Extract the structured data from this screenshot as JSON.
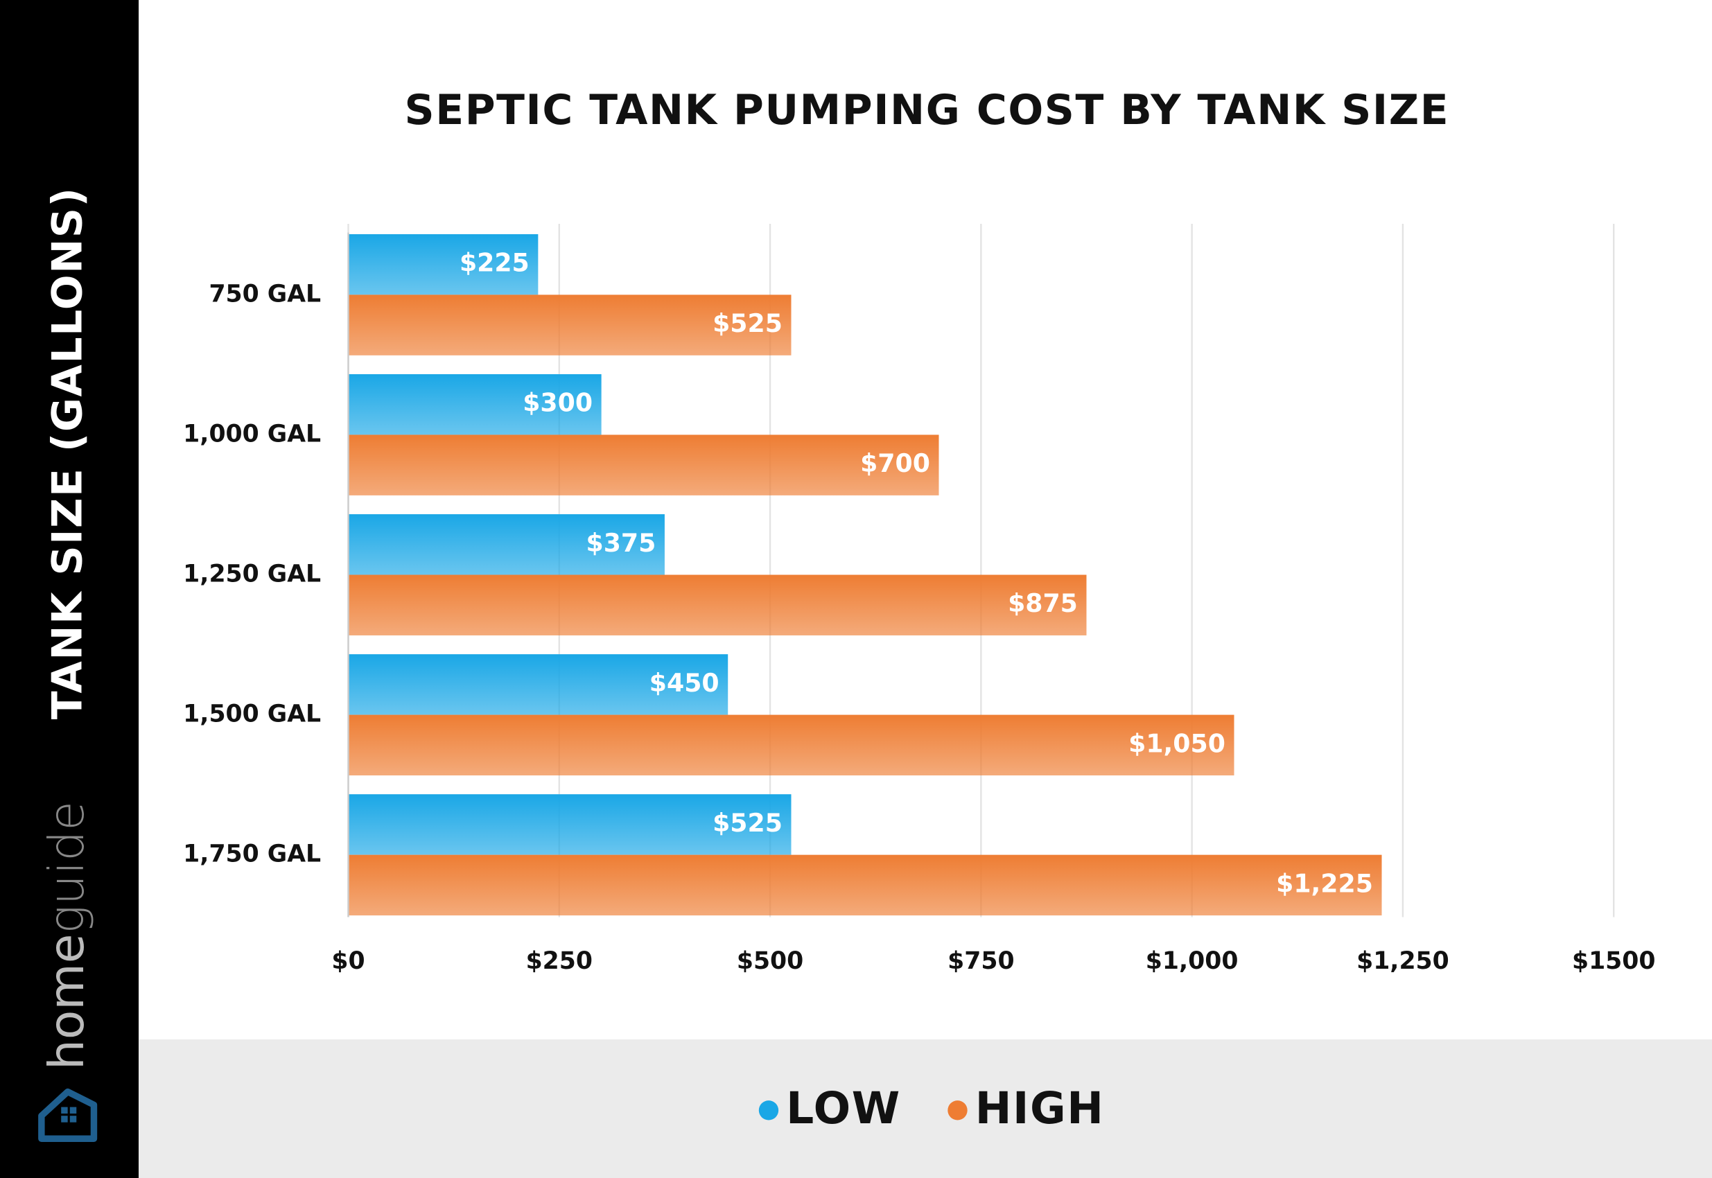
{
  "chart_data": {
    "type": "bar",
    "orientation": "horizontal",
    "title": "SEPTIC TANK PUMPING COST BY TANK SIZE",
    "y_label": "TANK SIZE (GALLONS)",
    "brand": {
      "home": "home",
      "guide": "guide"
    },
    "categories": [
      "750 GAL",
      "1,000 GAL",
      "1,250 GAL",
      "1,500 GAL",
      "1,750 GAL"
    ],
    "series": [
      {
        "name": "LOW",
        "color": "#1aa7e6",
        "values": [
          225,
          300,
          375,
          450,
          525
        ],
        "value_labels": [
          "$225",
          "$300",
          "$375",
          "$450",
          "$525"
        ]
      },
      {
        "name": "HIGH",
        "color": "#ee7d33",
        "values": [
          525,
          700,
          875,
          1050,
          1225
        ],
        "value_labels": [
          "$525",
          "$700",
          "$875",
          "$1,050",
          "$1,225"
        ]
      }
    ],
    "xlim": [
      0,
      1500
    ],
    "xticks": [
      {
        "value": 0,
        "label": "$0"
      },
      {
        "value": 250,
        "label": "$250"
      },
      {
        "value": 500,
        "label": "$500"
      },
      {
        "value": 750,
        "label": "$750"
      },
      {
        "value": 1000,
        "label": "$1,000"
      },
      {
        "value": 1250,
        "label": "$1,250"
      },
      {
        "value": 1500,
        "label": "$1500"
      }
    ],
    "grid": true
  }
}
